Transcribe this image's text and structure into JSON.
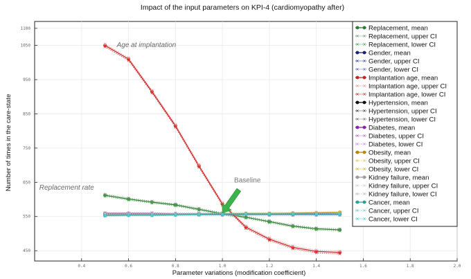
{
  "chart_data": {
    "type": "line",
    "title": "Impact of the input parameters on KPI-4 (cardiomyopathy after)",
    "xlabel": "Parameter variations (modification coefficient)",
    "ylabel": "Number of times in the care-state",
    "xlim": [
      0.2,
      2.0
    ],
    "ylim": [
      420,
      1120
    ],
    "xticks": [
      0.4,
      0.6,
      0.8,
      1.0,
      1.2,
      1.4,
      1.6,
      1.8,
      2.0
    ],
    "xtick_labels": [
      "0.4",
      "0.6",
      "0.8",
      "1.0",
      "1.2",
      "1.4",
      "1.6",
      "1.8",
      "2.0"
    ],
    "yticks": [
      450,
      550,
      650,
      750,
      850,
      950,
      1050,
      1100
    ],
    "ytick_labels": [
      "450",
      "550",
      "650",
      "750",
      "850",
      "950",
      "1050",
      "1100"
    ],
    "grid": true,
    "legend_position": "right",
    "x": [
      0.5,
      0.6,
      0.7,
      0.8,
      0.9,
      1.0,
      1.1,
      1.2,
      1.3,
      1.4,
      1.5
    ],
    "series": [
      {
        "name": "Replacement, mean",
        "color": "#2e7d32",
        "style": "solid",
        "marker": "circle",
        "values": [
          612,
          601,
          592,
          584,
          571,
          558,
          548,
          535,
          522,
          514,
          511
        ]
      },
      {
        "name": "Replacement, upper CI",
        "color": "#7a9a7a",
        "style": "dotted",
        "marker": "x",
        "values": [
          615,
          604,
          595,
          587,
          574,
          561,
          551,
          538,
          525,
          517,
          514
        ]
      },
      {
        "name": "Replacement, lower CI",
        "color": "#4caf50",
        "style": "dotted",
        "marker": "x",
        "values": [
          609,
          598,
          589,
          581,
          568,
          555,
          545,
          532,
          519,
          511,
          508
        ]
      },
      {
        "name": "Gender, mean",
        "color": "#1a237e",
        "style": "solid",
        "marker": "circle",
        "values": [
          556,
          556,
          556,
          556,
          556,
          556,
          556,
          556,
          556,
          556,
          556
        ]
      },
      {
        "name": "Gender, upper CI",
        "color": "#3949ab",
        "style": "dotted",
        "marker": "x",
        "values": [
          558,
          558,
          558,
          558,
          558,
          558,
          558,
          558,
          558,
          558,
          558
        ]
      },
      {
        "name": "Gender, lower CI",
        "color": "#5c6bc0",
        "style": "dotted",
        "marker": "x",
        "values": [
          554,
          554,
          554,
          554,
          554,
          554,
          554,
          554,
          554,
          554,
          554
        ]
      },
      {
        "name": "Implantation age, mean",
        "color": "#c62828",
        "style": "solid",
        "marker": "circle",
        "values": [
          1050,
          1010,
          915,
          815,
          698,
          587,
          519,
          484,
          460,
          448,
          445
        ]
      },
      {
        "name": "Implantation age, upper CI",
        "color": "#ef9a9a",
        "style": "dotted",
        "marker": "x",
        "values": [
          1054,
          1014,
          919,
          819,
          702,
          591,
          523,
          488,
          464,
          452,
          449
        ]
      },
      {
        "name": "Implantation age, lower CI",
        "color": "#e53935",
        "style": "dotted",
        "marker": "x",
        "values": [
          1046,
          1006,
          911,
          811,
          694,
          583,
          515,
          480,
          456,
          444,
          441
        ]
      },
      {
        "name": "Hypertension, mean",
        "color": "#111111",
        "style": "solid",
        "marker": "circle",
        "values": [
          558,
          558,
          557,
          557,
          557,
          557,
          557,
          557,
          557,
          557,
          557
        ]
      },
      {
        "name": "Hypertension, upper CI",
        "color": "#444444",
        "style": "dotted",
        "marker": "x",
        "values": [
          560,
          560,
          559,
          559,
          559,
          559,
          559,
          559,
          559,
          559,
          559
        ]
      },
      {
        "name": "Hypertension, lower CI",
        "color": "#777777",
        "style": "dotted",
        "marker": "x",
        "values": [
          556,
          556,
          555,
          555,
          555,
          555,
          555,
          555,
          555,
          555,
          555
        ]
      },
      {
        "name": "Diabetes, mean",
        "color": "#8e24aa",
        "style": "solid",
        "marker": "circle",
        "values": [
          559,
          559,
          559,
          558,
          558,
          558,
          558,
          558,
          558,
          558,
          558
        ]
      },
      {
        "name": "Diabetes, upper CI",
        "color": "#ba68c8",
        "style": "dotted",
        "marker": "x",
        "values": [
          561,
          561,
          561,
          560,
          560,
          560,
          560,
          560,
          560,
          560,
          560
        ]
      },
      {
        "name": "Diabetes, lower CI",
        "color": "#ce93d8",
        "style": "dotted",
        "marker": "x",
        "values": [
          557,
          557,
          557,
          556,
          556,
          556,
          556,
          556,
          556,
          556,
          556
        ]
      },
      {
        "name": "Obesity, mean",
        "color": "#b8860b",
        "style": "solid",
        "marker": "circle",
        "values": [
          555,
          555,
          556,
          556,
          557,
          558,
          559,
          559,
          560,
          561,
          562
        ]
      },
      {
        "name": "Obesity, upper CI",
        "color": "#e6c65c",
        "style": "dotted",
        "marker": "x",
        "values": [
          557,
          557,
          558,
          558,
          559,
          560,
          561,
          561,
          562,
          563,
          564
        ]
      },
      {
        "name": "Obesity, lower CI",
        "color": "#d4b84a",
        "style": "dotted",
        "marker": "x",
        "values": [
          553,
          553,
          554,
          554,
          555,
          556,
          557,
          557,
          558,
          559,
          560
        ]
      },
      {
        "name": "Kidney failure, mean",
        "color": "#9e9e9e",
        "style": "solid",
        "marker": "circle",
        "values": [
          557,
          557,
          557,
          557,
          557,
          557,
          557,
          557,
          557,
          557,
          557
        ]
      },
      {
        "name": "Kidney failure, upper CI",
        "color": "#cfcfcf",
        "style": "dotted",
        "marker": "x",
        "values": [
          559,
          559,
          559,
          559,
          559,
          559,
          559,
          559,
          559,
          559,
          559
        ]
      },
      {
        "name": "Kidney failure, lower CI",
        "color": "#bdbdbd",
        "style": "dotted",
        "marker": "x",
        "values": [
          555,
          555,
          555,
          555,
          555,
          555,
          555,
          555,
          555,
          555,
          555
        ]
      },
      {
        "name": "Cancer, mean",
        "color": "#26a69a",
        "style": "solid",
        "marker": "circle",
        "values": [
          553,
          554,
          554,
          555,
          556,
          557,
          557,
          557,
          557,
          557,
          557
        ]
      },
      {
        "name": "Cancer, upper CI",
        "color": "#80cbc4",
        "style": "dotted",
        "marker": "x",
        "values": [
          555,
          556,
          556,
          557,
          558,
          559,
          559,
          559,
          559,
          559,
          559
        ]
      },
      {
        "name": "Cancer, lower CI",
        "color": "#4dd0e1",
        "style": "dotted",
        "marker": "x",
        "values": [
          551,
          552,
          552,
          553,
          554,
          555,
          555,
          555,
          555,
          555,
          555
        ]
      }
    ],
    "annotations": [
      {
        "text": "Age at implantation",
        "x": 0.55,
        "y": 1045
      },
      {
        "text": "Replacement rate",
        "x": 0.22,
        "y": 628
      },
      {
        "text": "Baseline",
        "x": 1.05,
        "y": 650
      }
    ],
    "arrow": {
      "color": "#3cb44b",
      "from": [
        1.07,
        628
      ],
      "to": [
        1.0,
        560
      ]
    }
  }
}
